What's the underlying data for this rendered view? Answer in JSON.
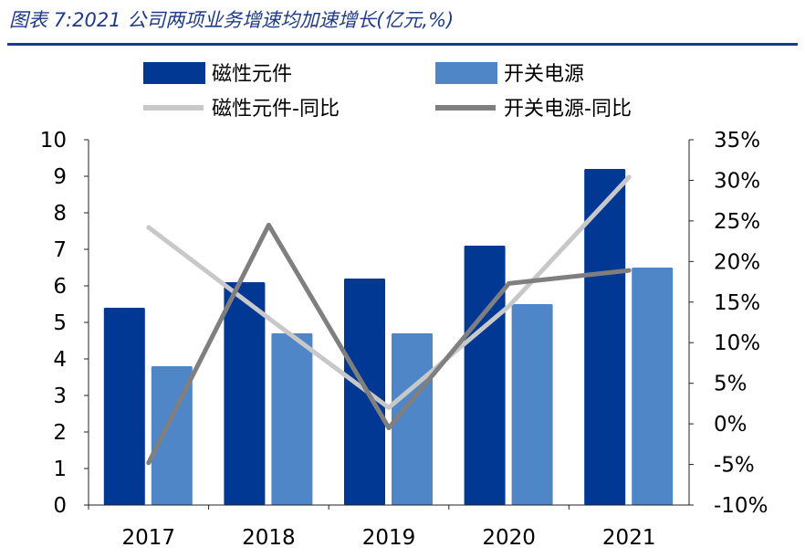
{
  "title": "图表 7:2021 公司两项业务增速均加速增长(亿元,%)",
  "colors": {
    "title": "#1f3a8a",
    "magnetic_bar": "#003893",
    "power_bar": "#4e86c8",
    "magnetic_line": "#c8c8c8",
    "power_line": "#7f7f7f"
  },
  "chart_data": {
    "type": "bar",
    "categories": [
      "2017",
      "2018",
      "2019",
      "2020",
      "2021"
    ],
    "series": [
      {
        "name": "磁性元件",
        "type": "bar",
        "axis": "left",
        "values": [
          5.4,
          6.1,
          6.2,
          7.1,
          9.2
        ]
      },
      {
        "name": "开关电源",
        "type": "bar",
        "axis": "left",
        "values": [
          3.8,
          4.7,
          4.7,
          5.5,
          6.5
        ]
      },
      {
        "name": "磁性元件-同比",
        "type": "line",
        "axis": "right",
        "values": [
          24.2,
          13.0,
          2.0,
          14.5,
          30.4
        ]
      },
      {
        "name": "开关电源-同比",
        "type": "line",
        "axis": "right",
        "values": [
          -4.8,
          24.5,
          -0.5,
          17.3,
          18.9
        ]
      }
    ],
    "left_axis": {
      "min": 0,
      "max": 10,
      "ticks": [
        "0",
        "1",
        "2",
        "3",
        "4",
        "5",
        "6",
        "7",
        "8",
        "9",
        "10"
      ]
    },
    "right_axis": {
      "min": -10,
      "max": 35,
      "unit": "%",
      "ticks": [
        "-10%",
        "-5%",
        "0%",
        "5%",
        "10%",
        "15%",
        "20%",
        "25%",
        "30%",
        "35%"
      ]
    },
    "legend_position": "top",
    "grid": false
  }
}
